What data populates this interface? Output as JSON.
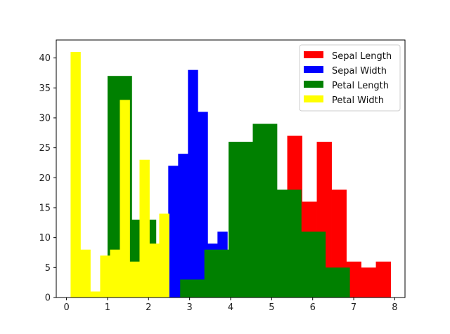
{
  "chart_data": {
    "type": "bar",
    "title": "",
    "xlabel": "",
    "ylabel": "",
    "xlim": [
      -0.25,
      8.25
    ],
    "ylim": [
      0,
      43
    ],
    "xticks": [
      "0",
      "1",
      "2",
      "3",
      "4",
      "5",
      "6",
      "7",
      "8"
    ],
    "yticks": [
      "0",
      "5",
      "10",
      "15",
      "20",
      "25",
      "30",
      "35",
      "40"
    ],
    "legend_position": "top-right",
    "series": [
      {
        "name": "Sepal Length",
        "color": "#ff0000",
        "bins": [
          {
            "x0": 4.3,
            "x1": 4.66,
            "count": 9
          },
          {
            "x0": 4.66,
            "x1": 5.02,
            "count": 23
          },
          {
            "x0": 5.02,
            "x1": 5.38,
            "count": 14
          },
          {
            "x0": 5.38,
            "x1": 5.74,
            "count": 27
          },
          {
            "x0": 5.74,
            "x1": 6.1,
            "count": 16
          },
          {
            "x0": 6.1,
            "x1": 6.46,
            "count": 26
          },
          {
            "x0": 6.46,
            "x1": 6.82,
            "count": 18
          },
          {
            "x0": 6.82,
            "x1": 7.18,
            "count": 6
          },
          {
            "x0": 7.18,
            "x1": 7.54,
            "count": 5
          },
          {
            "x0": 7.54,
            "x1": 7.9,
            "count": 6
          }
        ]
      },
      {
        "name": "Sepal Width",
        "color": "#0000ff",
        "bins": [
          {
            "x0": 2.0,
            "x1": 2.24,
            "count": 4
          },
          {
            "x0": 2.24,
            "x1": 2.48,
            "count": 7
          },
          {
            "x0": 2.48,
            "x1": 2.72,
            "count": 22
          },
          {
            "x0": 2.72,
            "x1": 2.96,
            "count": 24
          },
          {
            "x0": 2.96,
            "x1": 3.2,
            "count": 38
          },
          {
            "x0": 3.2,
            "x1": 3.44,
            "count": 31
          },
          {
            "x0": 3.44,
            "x1": 3.68,
            "count": 9
          },
          {
            "x0": 3.68,
            "x1": 3.92,
            "count": 11
          },
          {
            "x0": 3.92,
            "x1": 4.16,
            "count": 2
          },
          {
            "x0": 4.16,
            "x1": 4.4,
            "count": 2
          }
        ]
      },
      {
        "name": "Petal Length",
        "color": "#008000",
        "bins": [
          {
            "x0": 1.0,
            "x1": 1.59,
            "count": 37
          },
          {
            "x0": 1.59,
            "x1": 2.18,
            "count": 13
          },
          {
            "x0": 2.18,
            "x1": 2.77,
            "count": 0
          },
          {
            "x0": 2.77,
            "x1": 3.36,
            "count": 3
          },
          {
            "x0": 3.36,
            "x1": 3.95,
            "count": 8
          },
          {
            "x0": 3.95,
            "x1": 4.54,
            "count": 26
          },
          {
            "x0": 4.54,
            "x1": 5.13,
            "count": 29
          },
          {
            "x0": 5.13,
            "x1": 5.72,
            "count": 18
          },
          {
            "x0": 5.72,
            "x1": 6.31,
            "count": 11
          },
          {
            "x0": 6.31,
            "x1": 6.9,
            "count": 5
          }
        ]
      },
      {
        "name": "Petal Width",
        "color": "#ffff00",
        "bins": [
          {
            "x0": 0.1,
            "x1": 0.34,
            "count": 41
          },
          {
            "x0": 0.34,
            "x1": 0.58,
            "count": 8
          },
          {
            "x0": 0.58,
            "x1": 0.82,
            "count": 1
          },
          {
            "x0": 0.82,
            "x1": 1.06,
            "count": 7
          },
          {
            "x0": 1.06,
            "x1": 1.3,
            "count": 8
          },
          {
            "x0": 1.3,
            "x1": 1.54,
            "count": 33
          },
          {
            "x0": 1.54,
            "x1": 1.78,
            "count": 6
          },
          {
            "x0": 1.78,
            "x1": 2.02,
            "count": 23
          },
          {
            "x0": 2.02,
            "x1": 2.26,
            "count": 9
          },
          {
            "x0": 2.26,
            "x1": 2.5,
            "count": 14
          }
        ]
      }
    ]
  }
}
